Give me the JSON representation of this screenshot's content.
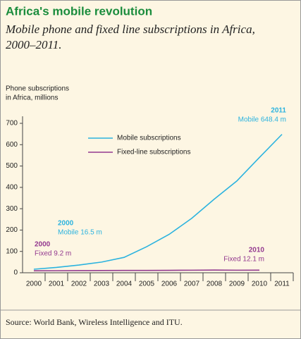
{
  "chart_data": {
    "type": "line",
    "title": "Africa's mobile revolution",
    "subtitle": [
      "Mobile phone and fixed line subscriptions in Africa,",
      "2000–2011."
    ],
    "ylabel": [
      "Phone subscriptions",
      "in Africa, millions"
    ],
    "categories": [
      "2000",
      "2001",
      "2002",
      "2003",
      "2004",
      "2005",
      "2006",
      "2007",
      "2008",
      "2009",
      "2010",
      "2011"
    ],
    "series": [
      {
        "name": "Mobile subscriptions",
        "color": "#2bb3df",
        "values": [
          16.5,
          25,
          36,
          50,
          72,
          122,
          180,
          255,
          345,
          430,
          540,
          648.4
        ]
      },
      {
        "name": "Fixed-line subscriptions",
        "color": "#93398f",
        "values": [
          9.2,
          9.5,
          10,
          10.5,
          11,
          11,
          11.5,
          12,
          12.5,
          12,
          12.1,
          null
        ]
      }
    ],
    "annotations": [
      {
        "title": "2000",
        "text": "Mobile 16.5 m",
        "series": 0
      },
      {
        "title": "2000",
        "text": "Fixed 9.2 m",
        "series": 1
      },
      {
        "title": "2010",
        "text": "Fixed 12.1 m",
        "series": 1
      },
      {
        "title": "2011",
        "text": "Mobile 648.4 m",
        "series": 0
      }
    ],
    "ylim": [
      0,
      700
    ],
    "yticks": [
      0,
      100,
      200,
      300,
      400,
      500,
      600,
      700
    ],
    "source": "Source: World Bank, Wireless Intelligence and ITU."
  }
}
